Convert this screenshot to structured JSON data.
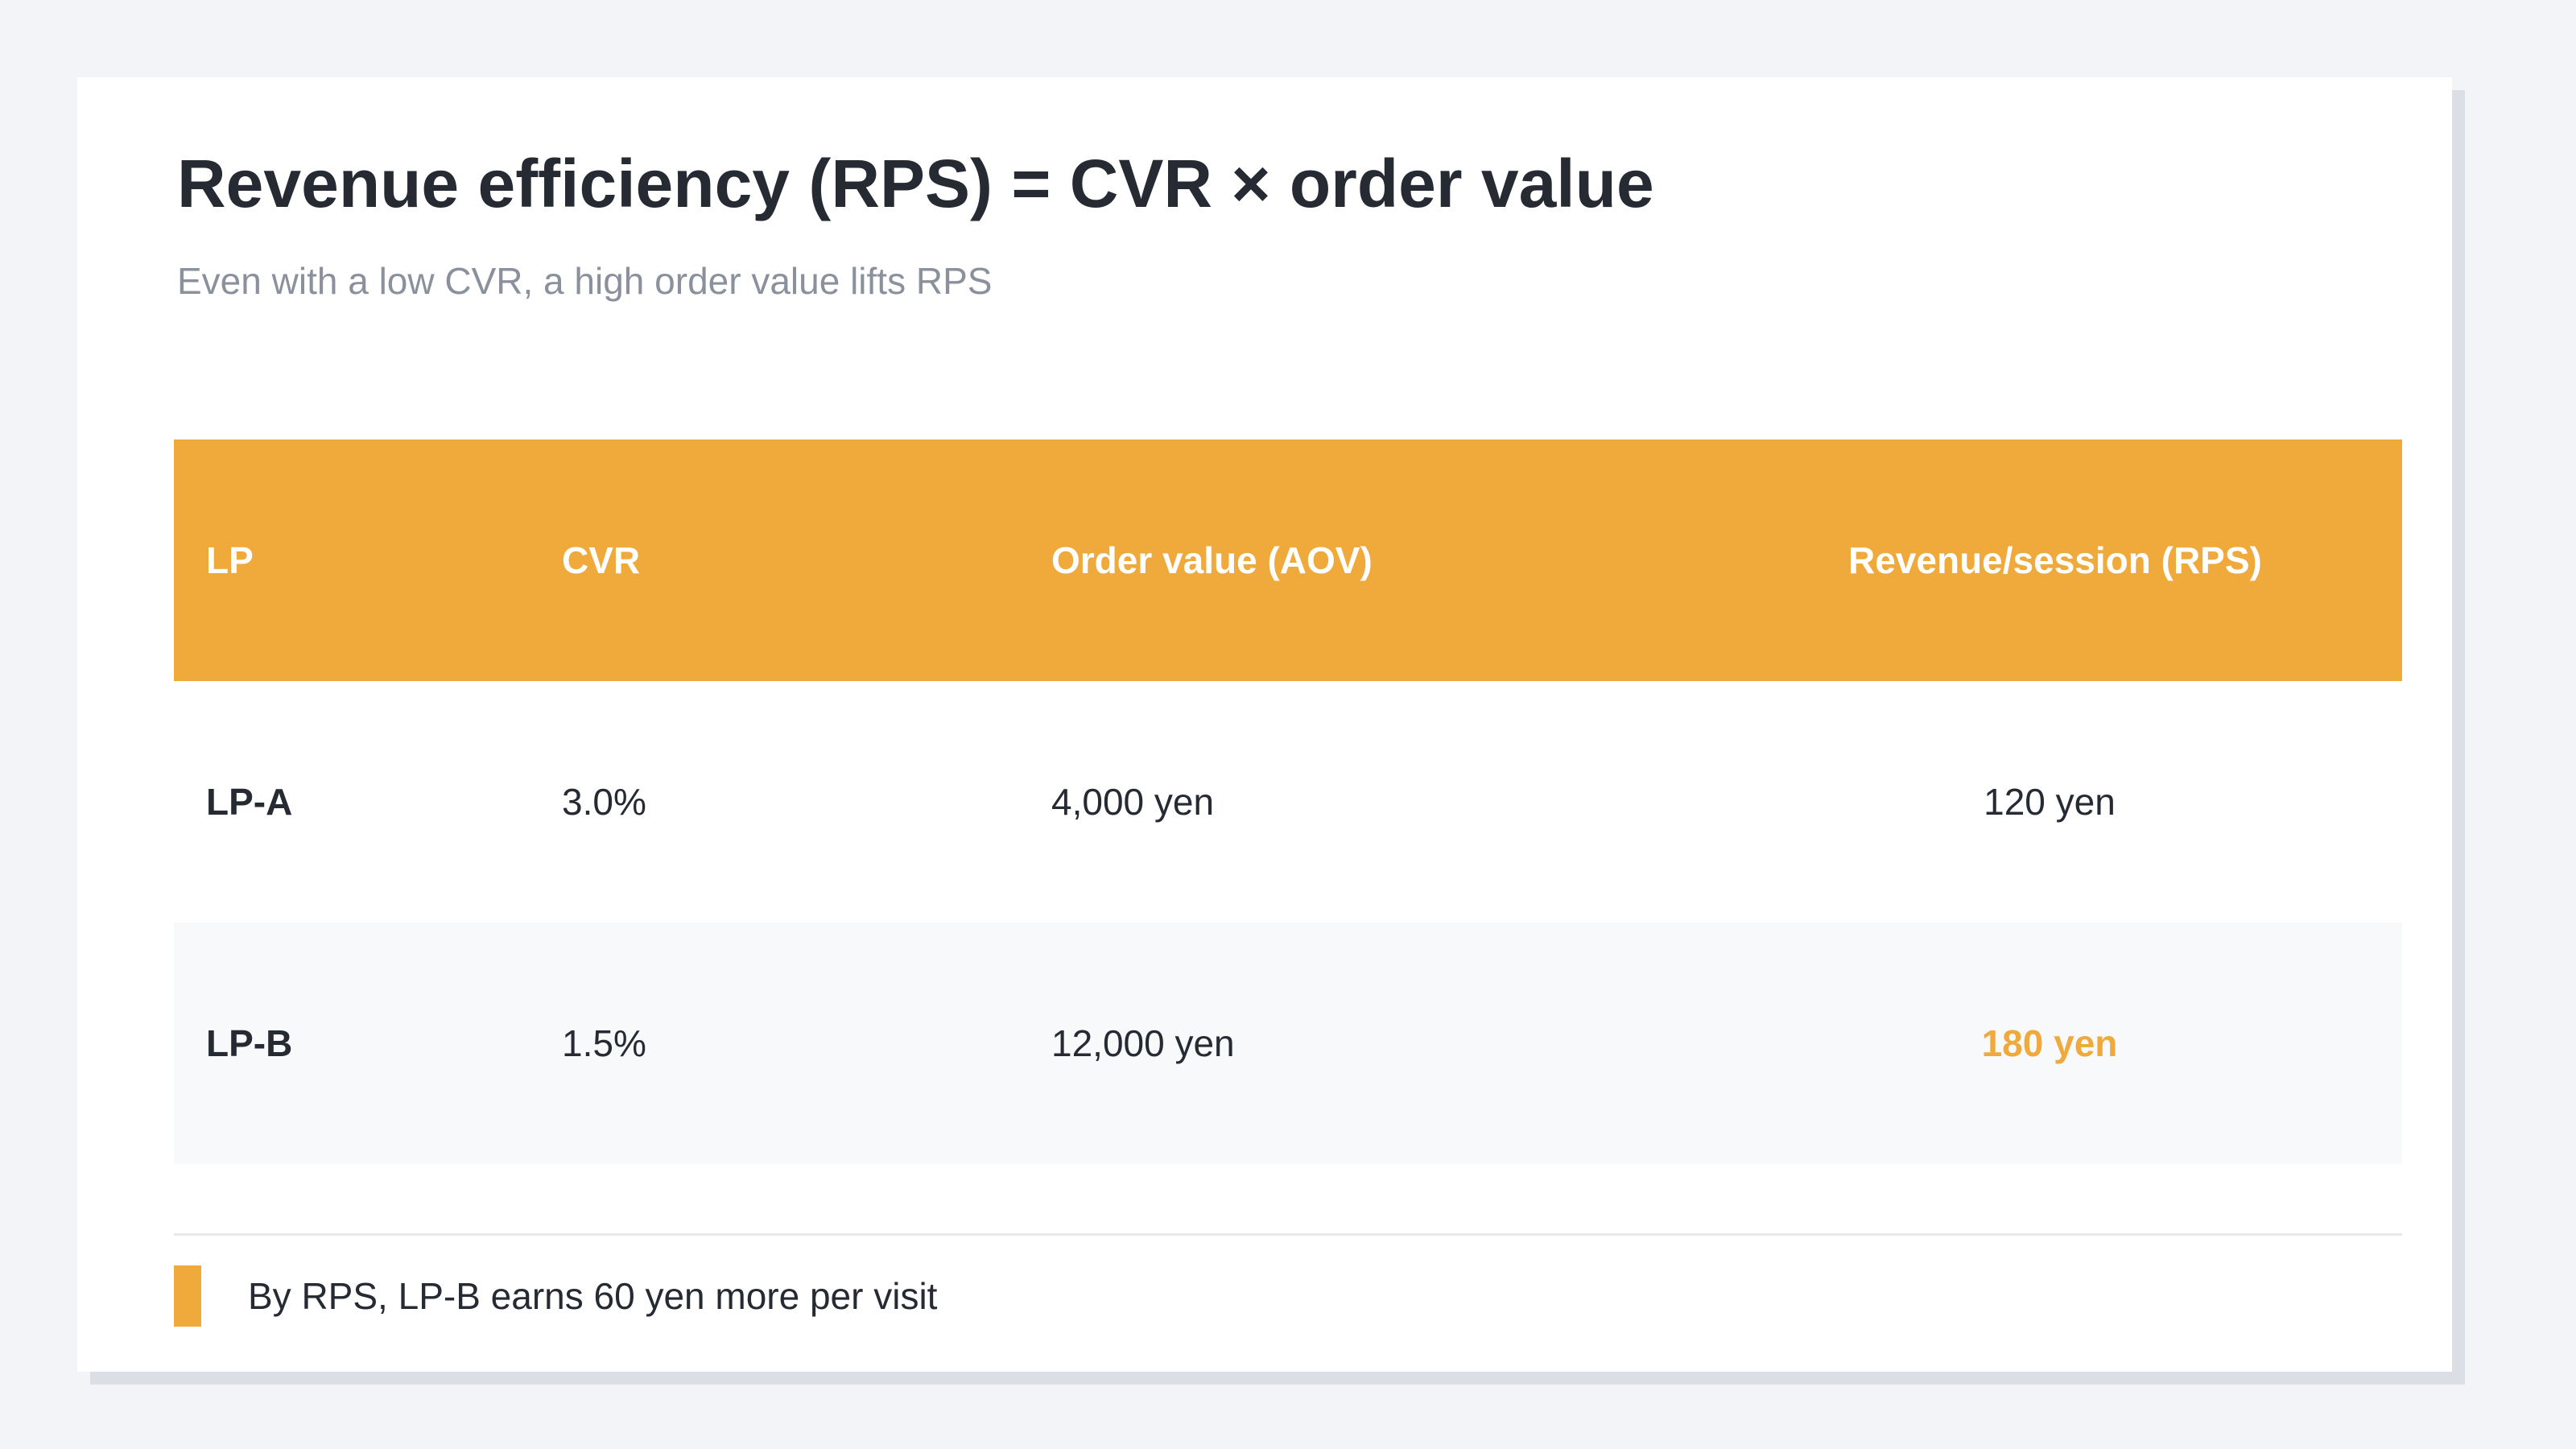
{
  "colors": {
    "accent": "#f0a93b",
    "background": "#f3f4f8",
    "card": "#ffffff",
    "text": "#262a33",
    "muted": "#8a919d"
  },
  "title": "Revenue efficiency (RPS) = CVR × order value",
  "subtitle": "Even with a low CVR, a high order value lifts RPS",
  "table": {
    "headers": [
      "LP",
      "CVR",
      "Order value (AOV)",
      "Revenue/session (RPS)"
    ],
    "rows": [
      {
        "lp": "LP-A",
        "cvr": "3.0%",
        "aov": "4,000 yen",
        "rps": "120 yen",
        "highlight": false
      },
      {
        "lp": "LP-B",
        "cvr": "1.5%",
        "aov": "12,000 yen",
        "rps": "180 yen",
        "highlight": true
      }
    ]
  },
  "note": "By RPS, LP-B earns 60 yen more per visit"
}
